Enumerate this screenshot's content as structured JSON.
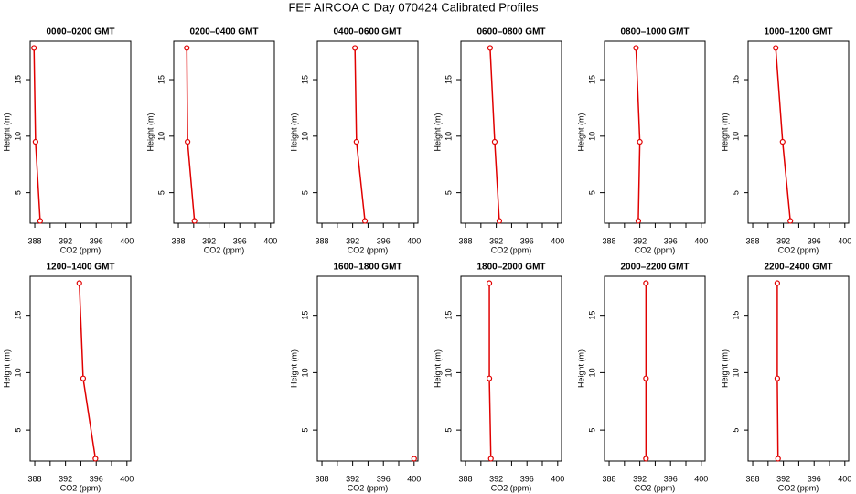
{
  "title": "FEF AIRCOA C  Day 070424  Calibrated Profiles",
  "chart_data": [
    {
      "type": "line",
      "title": "0000–0200 GMT",
      "xlabel": "CO2 (ppm)",
      "ylabel": "Height (m)",
      "xlim": [
        387.4,
        400.5
      ],
      "ylim": [
        2.3,
        18.4
      ],
      "xticks": [
        388,
        392,
        396,
        400
      ],
      "xminorticks": [
        390,
        394,
        398
      ],
      "yticks": [
        5,
        10,
        15
      ],
      "series": [
        {
          "color": "#e00000",
          "x": [
            387.9,
            388.1,
            388.7
          ],
          "values": [
            17.8,
            9.5,
            2.5
          ]
        }
      ]
    },
    {
      "type": "line",
      "title": "0200–0400 GMT",
      "xlabel": "CO2 (ppm)",
      "ylabel": "Height (m)",
      "xlim": [
        387.4,
        400.5
      ],
      "ylim": [
        2.3,
        18.4
      ],
      "xticks": [
        388,
        392,
        396,
        400
      ],
      "xminorticks": [
        390,
        394,
        398
      ],
      "yticks": [
        5,
        10,
        15
      ],
      "series": [
        {
          "color": "#e00000",
          "x": [
            389.1,
            389.2,
            390.1
          ],
          "values": [
            17.8,
            9.5,
            2.5
          ]
        }
      ]
    },
    {
      "type": "line",
      "title": "0400–0600 GMT",
      "xlabel": "CO2 (ppm)",
      "ylabel": "Height (m)",
      "xlim": [
        387.4,
        400.5
      ],
      "ylim": [
        2.3,
        18.4
      ],
      "xticks": [
        388,
        392,
        396,
        400
      ],
      "xminorticks": [
        390,
        394,
        398
      ],
      "yticks": [
        5,
        10,
        15
      ],
      "series": [
        {
          "color": "#e00000",
          "x": [
            392.3,
            392.5,
            393.6
          ],
          "values": [
            17.8,
            9.5,
            2.5
          ]
        }
      ]
    },
    {
      "type": "line",
      "title": "0600–0800 GMT",
      "xlabel": "CO2 (ppm)",
      "ylabel": "Height (m)",
      "xlim": [
        387.4,
        400.5
      ],
      "ylim": [
        2.3,
        18.4
      ],
      "xticks": [
        388,
        392,
        396,
        400
      ],
      "xminorticks": [
        390,
        394,
        398
      ],
      "yticks": [
        5,
        10,
        15
      ],
      "series": [
        {
          "color": "#e00000",
          "x": [
            391.2,
            391.8,
            392.4
          ],
          "values": [
            17.8,
            9.5,
            2.5
          ]
        }
      ]
    },
    {
      "type": "line",
      "title": "0800–1000 GMT",
      "xlabel": "CO2 (ppm)",
      "ylabel": "Height (m)",
      "xlim": [
        387.4,
        400.5
      ],
      "ylim": [
        2.3,
        18.4
      ],
      "xticks": [
        388,
        392,
        396,
        400
      ],
      "xminorticks": [
        390,
        394,
        398
      ],
      "yticks": [
        5,
        10,
        15
      ],
      "series": [
        {
          "color": "#e00000",
          "x": [
            391.5,
            392.0,
            391.8
          ],
          "values": [
            17.8,
            9.5,
            2.5
          ]
        }
      ]
    },
    {
      "type": "line",
      "title": "1000–1200 GMT",
      "xlabel": "CO2 (ppm)",
      "ylabel": "Height (m)",
      "xlim": [
        387.4,
        400.5
      ],
      "ylim": [
        2.3,
        18.4
      ],
      "xticks": [
        388,
        392,
        396,
        400
      ],
      "xminorticks": [
        390,
        394,
        398
      ],
      "yticks": [
        5,
        10,
        15
      ],
      "series": [
        {
          "color": "#e00000",
          "x": [
            391.0,
            391.9,
            392.9
          ],
          "values": [
            17.8,
            9.5,
            2.5
          ]
        }
      ]
    },
    {
      "type": "line",
      "title": "1200–1400 GMT",
      "xlabel": "CO2 (ppm)",
      "ylabel": "Height (m)",
      "xlim": [
        387.4,
        400.5
      ],
      "ylim": [
        2.3,
        18.4
      ],
      "xticks": [
        388,
        392,
        396,
        400
      ],
      "xminorticks": [
        390,
        394,
        398
      ],
      "yticks": [
        5,
        10,
        15
      ],
      "series": [
        {
          "color": "#e00000",
          "x": [
            393.8,
            394.3,
            395.9
          ],
          "values": [
            17.8,
            9.5,
            2.5
          ]
        }
      ]
    },
    null,
    {
      "type": "line",
      "title": "1600–1800 GMT",
      "xlabel": "CO2 (ppm)",
      "ylabel": "Height (m)",
      "xlim": [
        387.4,
        400.5
      ],
      "ylim": [
        2.3,
        18.4
      ],
      "xticks": [
        388,
        392,
        396,
        400
      ],
      "xminorticks": [
        390,
        394,
        398
      ],
      "yticks": [
        5,
        10,
        15
      ],
      "series": [
        {
          "color": "#e00000",
          "x": [
            400.0
          ],
          "values": [
            2.5
          ]
        }
      ]
    },
    {
      "type": "line",
      "title": "1800–2000 GMT",
      "xlabel": "CO2 (ppm)",
      "ylabel": "Height (m)",
      "xlim": [
        387.4,
        400.5
      ],
      "ylim": [
        2.3,
        18.4
      ],
      "xticks": [
        388,
        392,
        396,
        400
      ],
      "xminorticks": [
        390,
        394,
        398
      ],
      "yticks": [
        5,
        10,
        15
      ],
      "series": [
        {
          "color": "#e00000",
          "x": [
            391.1,
            391.1,
            391.3
          ],
          "values": [
            17.8,
            9.5,
            2.5
          ]
        }
      ]
    },
    {
      "type": "line",
      "title": "2000–2200 GMT",
      "xlabel": "CO2 (ppm)",
      "ylabel": "Height (m)",
      "xlim": [
        387.4,
        400.5
      ],
      "ylim": [
        2.3,
        18.4
      ],
      "xticks": [
        388,
        392,
        396,
        400
      ],
      "xminorticks": [
        390,
        394,
        398
      ],
      "yticks": [
        5,
        10,
        15
      ],
      "series": [
        {
          "color": "#e00000",
          "x": [
            392.8,
            392.8,
            392.8
          ],
          "values": [
            17.8,
            9.5,
            2.5
          ]
        }
      ]
    },
    {
      "type": "line",
      "title": "2200–2400 GMT",
      "xlabel": "CO2 (ppm)",
      "ylabel": "Height (m)",
      "xlim": [
        387.4,
        400.5
      ],
      "ylim": [
        2.3,
        18.4
      ],
      "xticks": [
        388,
        392,
        396,
        400
      ],
      "xminorticks": [
        390,
        394,
        398
      ],
      "yticks": [
        5,
        10,
        15
      ],
      "series": [
        {
          "color": "#e00000",
          "x": [
            391.2,
            391.2,
            391.3
          ],
          "values": [
            17.8,
            9.5,
            2.5
          ]
        }
      ]
    }
  ]
}
